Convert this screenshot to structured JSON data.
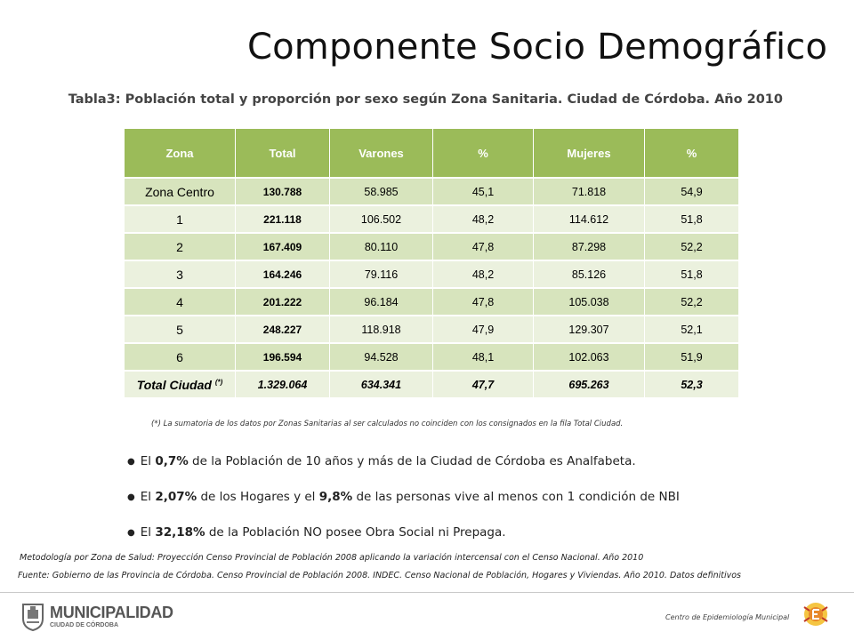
{
  "title": "Componente Socio Demográfico",
  "subtitle": "Tabla3: Población total y proporción por sexo según Zona Sanitaria. Ciudad de Córdoba. Año 2010",
  "table": {
    "headers": [
      "Zona",
      "Total",
      "Varones",
      "%",
      "Mujeres",
      "%"
    ],
    "rows": [
      {
        "zona": "Zona Centro",
        "total": "130.788",
        "varones": "58.985",
        "pct_v": "45,1",
        "mujeres": "71.818",
        "pct_m": "54,9"
      },
      {
        "zona": "1",
        "total": "221.118",
        "varones": "106.502",
        "pct_v": "48,2",
        "mujeres": "114.612",
        "pct_m": "51,8"
      },
      {
        "zona": "2",
        "total": "167.409",
        "varones": "80.110",
        "pct_v": "47,8",
        "mujeres": "87.298",
        "pct_m": "52,2"
      },
      {
        "zona": "3",
        "total": "164.246",
        "varones": "79.116",
        "pct_v": "48,2",
        "mujeres": "85.126",
        "pct_m": "51,8"
      },
      {
        "zona": "4",
        "total": "201.222",
        "varones": "96.184",
        "pct_v": "47,8",
        "mujeres": "105.038",
        "pct_m": "52,2"
      },
      {
        "zona": "5",
        "total": "248.227",
        "varones": "118.918",
        "pct_v": "47,9",
        "mujeres": "129.307",
        "pct_m": "52,1"
      },
      {
        "zona": "6",
        "total": "196.594",
        "varones": "94.528",
        "pct_v": "48,1",
        "mujeres": "102.063",
        "pct_m": "51,9"
      }
    ],
    "total_row": {
      "zona": "Total Ciudad",
      "note": "(*)",
      "total": "1.329.064",
      "varones": "634.341",
      "pct_v": "47,7",
      "mujeres": "695.263",
      "pct_m": "52,3"
    }
  },
  "footnote": "(*) La sumatoria de los datos por Zonas Sanitarias al ser calculados no coinciden con los consignados en la fila Total Ciudad.",
  "bullets": [
    {
      "prefix": "El ",
      "bold": "0,7%",
      "suffix": " de la Población de 10 años y más de la Ciudad de Córdoba es Analfabeta."
    },
    {
      "prefix": "El ",
      "bold": "2,07%",
      "mid": " de los Hogares y el ",
      "bold2": "9,8%",
      "suffix": " de las personas vive al menos con 1 condición de NBI"
    },
    {
      "prefix": "El ",
      "bold": "32,18%",
      "suffix": " de la Población NO posee Obra Social ni Prepaga."
    }
  ],
  "metodologia": "Metodología por Zona de Salud: Proyección Censo Provincial de Población 2008 aplicando la variación intercensal con el Censo Nacional. Año 2010",
  "fuente": "Fuente: Gobierno de las Provincia de Córdoba. Censo Provincial de Población 2008. INDEC. Censo Nacional de Población, Hogares y Viviendas. Año 2010. Datos definitivos",
  "footer": {
    "logo_main": "MUNICIPALIDAD",
    "logo_sub": "CIUDAD DE CÓRDOBA",
    "centro": "Centro de Epidemiología Municipal"
  },
  "colors": {
    "header_green": "#9bbb59",
    "row_dark": "#d7e4bd",
    "row_light": "#ebf1de"
  }
}
